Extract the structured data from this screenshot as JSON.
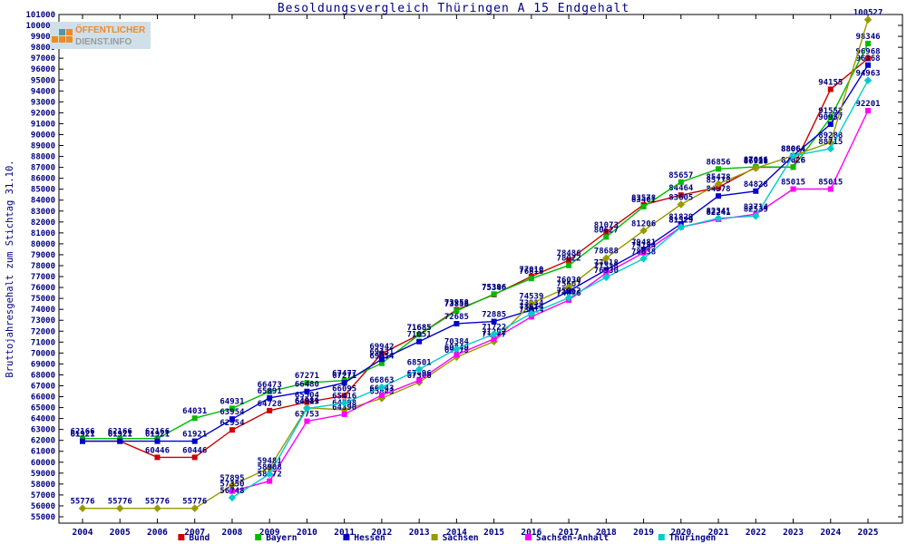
{
  "title": "Besoldungsvergleich Thüringen A 15 Endgehalt",
  "logo": {
    "line1": "ÖFFENTLICHER",
    "line2": "DIENST.INFO"
  },
  "chart_data": {
    "type": "line",
    "title": "Besoldungsvergleich Thüringen A 15 Endgehalt",
    "xlabel": "",
    "ylabel": "Bruttojahresgehalt zum Stichtag 31.10.",
    "ylim": [
      55000,
      101000
    ],
    "ytick_step": 1000,
    "grid": false,
    "legend_position": "bottom",
    "label_color": "#000080",
    "axis_color": "#000000",
    "x": [
      2004,
      2005,
      2006,
      2007,
      2008,
      2009,
      2010,
      2011,
      2012,
      2013,
      2014,
      2015,
      2016,
      2017,
      2018,
      2019,
      2020,
      2021,
      2022,
      2023,
      2024,
      2025
    ],
    "series": [
      {
        "name": "Bund",
        "color": "#cc0000",
        "values": [
          61921,
          61921,
          60446,
          60446,
          62954,
          64728,
          65504,
          66095,
          69942,
          71685,
          73958,
          75346,
          77010,
          78486,
          81073,
          83578,
          84464,
          85178,
          87011,
          87026,
          94155,
          96968
        ]
      },
      {
        "name": "Bayern",
        "color": "#00bb00",
        "values": [
          62166,
          62166,
          62166,
          64031,
          64931,
          66473,
          67271,
          67477,
          69054,
          71685,
          73858,
          75396,
          76818,
          78022,
          80627,
          83401,
          85657,
          86856,
          87046,
          87026,
          91552,
          98346
        ]
      },
      {
        "name": "Hessen",
        "color": "#0000cc",
        "values": [
          61921,
          61921,
          61921,
          61921,
          63954,
          65891,
          66480,
          67271,
          69431,
          71051,
          72685,
          72885,
          73934,
          75667,
          77618,
          79481,
          81829,
          84378,
          84828,
          88064,
          90957,
          96368
        ]
      },
      {
        "name": "Sachsen",
        "color": "#999900",
        "values": [
          55776,
          55776,
          55776,
          55776,
          57895,
          59481,
          64981,
          64798,
          65843,
          67306,
          69619,
          71047,
          74539,
          76030,
          78688,
          81206,
          83605,
          85478,
          86928,
          88064,
          89288,
          100527
        ]
      },
      {
        "name": "Sachsen-Anhalt",
        "color": "#ff00ff",
        "values": [
          null,
          null,
          null,
          null,
          57350,
          58272,
          63753,
          64390,
          66143,
          67496,
          69849,
          71292,
          73314,
          74846,
          77318,
          79184,
          81529,
          82241,
          82714,
          85015,
          85015,
          92201
        ]
      },
      {
        "name": "Thüringen",
        "color": "#00cccc",
        "values": [
          null,
          null,
          null,
          null,
          56748,
          58908,
          64919,
          65416,
          66863,
          68501,
          70384,
          71722,
          73614,
          75062,
          76930,
          78638,
          81529,
          82341,
          82539,
          88064,
          88715,
          94963
        ]
      }
    ]
  }
}
